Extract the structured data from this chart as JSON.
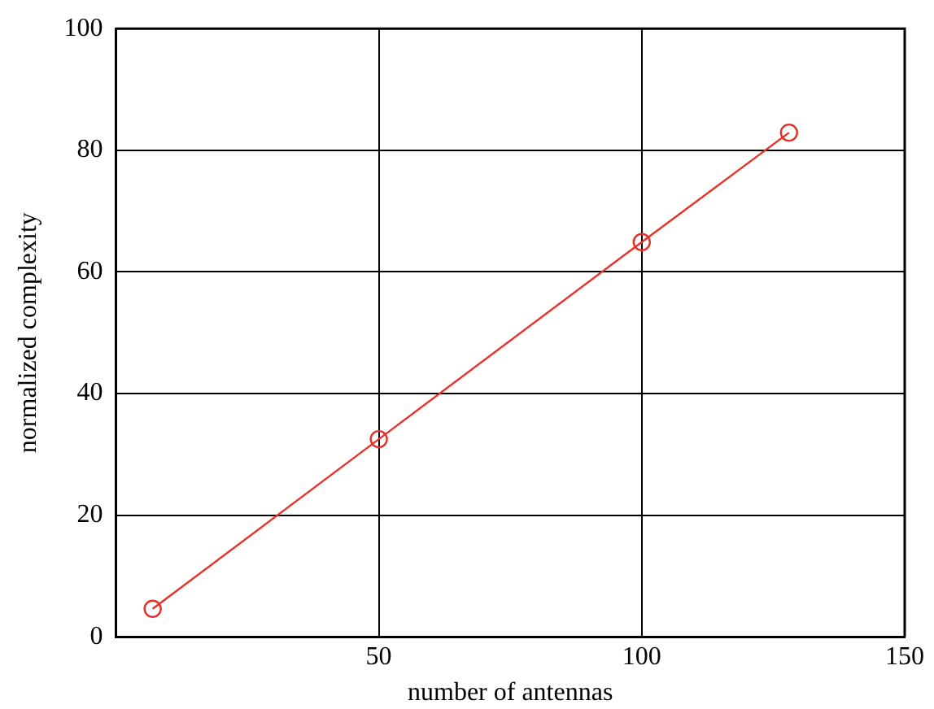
{
  "chart_data": {
    "type": "line",
    "xlabel": "number of antennas",
    "ylabel": "normalized complexity",
    "x": [
      7,
      50,
      100,
      128
    ],
    "series": [
      {
        "color": "#e8302a",
        "values": [
          4.6,
          32.5,
          64.9,
          82.9
        ]
      }
    ],
    "xlim": [
      0,
      150
    ],
    "xticks": [
      50,
      100,
      150
    ],
    "ylim": [
      0,
      100
    ],
    "yticks": [
      0,
      20,
      40,
      60,
      80,
      100
    ],
    "grid": true,
    "marker": "circle",
    "line_style": "solid",
    "legend": false
  }
}
